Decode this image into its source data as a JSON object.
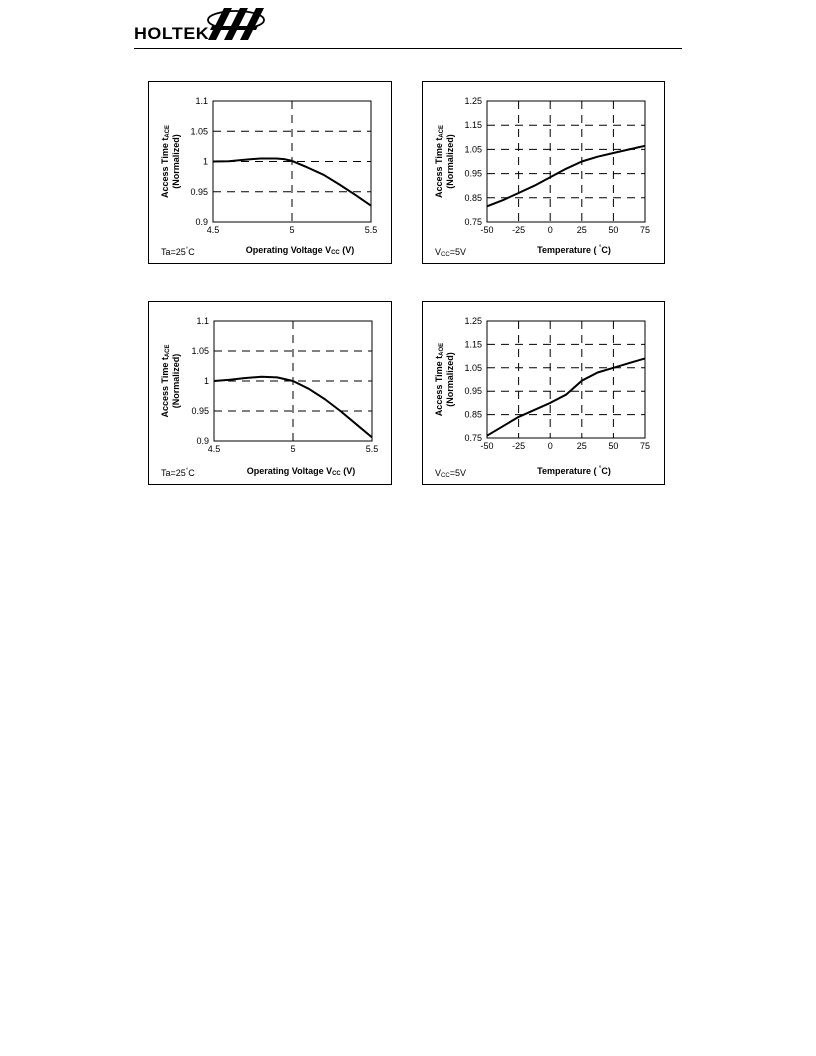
{
  "header": {
    "logo_text": "HOLTEK",
    "logo_mark_icon": "holtek-logo-mark-icon"
  },
  "chart_data": [
    {
      "type": "line",
      "xlabel": "Operating Voltage V",
      "xlabel_sub": "CC",
      "xlabel_tail": " (V)",
      "ylabel_line1": "Access Time t",
      "ylabel_sub": "ACE",
      "ylabel_line2": "(Normalized)",
      "condition": "Ta=25",
      "condition_unit": "C",
      "xlim": [
        4.5,
        5.5
      ],
      "ylim": [
        0.9,
        1.1
      ],
      "x_ticks": [
        "4.5",
        "5",
        "5.5"
      ],
      "y_ticks": [
        "0.9",
        "0.95",
        "1",
        "1.05",
        "1.1"
      ],
      "x_tick_values": [
        4.5,
        5,
        5.5
      ],
      "y_tick_values": [
        0.9,
        0.95,
        1,
        1.05,
        1.1
      ],
      "grid_dashed_y": [
        0.95,
        1,
        1.05
      ],
      "grid_dashed_x": [
        5
      ],
      "x": [
        4.5,
        4.6,
        4.7,
        4.8,
        4.9,
        4.95,
        5.0,
        5.1,
        5.2,
        5.3,
        5.4,
        5.5
      ],
      "y": [
        1.0,
        1.0005,
        1.003,
        1.005,
        1.005,
        1.004,
        1.001,
        0.99,
        0.978,
        0.962,
        0.945,
        0.927
      ]
    },
    {
      "type": "line",
      "xlabel": "Temperature ( ",
      "xlabel_sub": "",
      "xlabel_tail": "C)",
      "ylabel_line1": "Access Time t",
      "ylabel_sub": "ACE",
      "ylabel_line2": "(Normalized)",
      "condition": "V",
      "condition_sub": "CC",
      "condition_tail": "=5V",
      "xlim": [
        -50,
        75
      ],
      "ylim": [
        0.75,
        1.25
      ],
      "x_ticks": [
        "-50",
        "-25",
        "0",
        "25",
        "50",
        "75"
      ],
      "y_ticks": [
        "0.75",
        "0.85",
        "0.95",
        "1.05",
        "1.15",
        "1.25"
      ],
      "x_tick_values": [
        -50,
        -25,
        0,
        25,
        50,
        75
      ],
      "y_tick_values": [
        0.75,
        0.85,
        0.95,
        1.05,
        1.15,
        1.25
      ],
      "grid_dashed_y": [
        0.85,
        0.95,
        1.05,
        1.15
      ],
      "grid_dashed_x": [
        -25,
        0,
        25,
        50
      ],
      "x": [
        -50,
        -37.5,
        -25,
        -12.5,
        0,
        12.5,
        25,
        37.5,
        50,
        62.5,
        75
      ],
      "y": [
        0.815,
        0.84,
        0.87,
        0.9,
        0.935,
        0.97,
        1.0,
        1.02,
        1.035,
        1.05,
        1.065
      ]
    },
    {
      "type": "line",
      "xlabel": "Operating Voltage V",
      "xlabel_sub": "CC",
      "xlabel_tail": " (V)",
      "ylabel_line1": "Access Time t",
      "ylabel_sub": "ACE",
      "ylabel_line2": "(Normalized)",
      "condition": "Ta=25",
      "condition_unit": "C",
      "xlim": [
        4.5,
        5.5
      ],
      "ylim": [
        0.9,
        1.1
      ],
      "x_ticks": [
        "4.5",
        "5",
        "5.5"
      ],
      "y_ticks": [
        "0.9",
        "0.95",
        "1",
        "1.05",
        "1.1"
      ],
      "x_tick_values": [
        4.5,
        5,
        5.5
      ],
      "y_tick_values": [
        0.9,
        0.95,
        1,
        1.05,
        1.1
      ],
      "grid_dashed_y": [
        0.95,
        1,
        1.05
      ],
      "grid_dashed_x": [
        5
      ],
      "x": [
        4.5,
        4.6,
        4.7,
        4.8,
        4.9,
        5.0,
        5.1,
        5.2,
        5.3,
        5.4,
        5.5
      ],
      "y": [
        1.0,
        1.002,
        1.005,
        1.007,
        1.006,
        1.0,
        0.987,
        0.97,
        0.95,
        0.928,
        0.906
      ]
    },
    {
      "type": "line",
      "xlabel": "Temperature ( ",
      "xlabel_sub": "",
      "xlabel_tail": "C)",
      "ylabel_line1": "Access Time t",
      "ylabel_sub": "AOE",
      "ylabel_line2": "(Normalized)",
      "condition": "V",
      "condition_sub": "CC",
      "condition_tail": "=5V",
      "xlim": [
        -50,
        75
      ],
      "ylim": [
        0.75,
        1.25
      ],
      "x_ticks": [
        "-50",
        "-25",
        "0",
        "25",
        "50",
        "75"
      ],
      "y_ticks": [
        "0.75",
        "0.85",
        "0.95",
        "1.05",
        "1.15",
        "1.25"
      ],
      "x_tick_values": [
        -50,
        -25,
        0,
        25,
        50,
        75
      ],
      "y_tick_values": [
        0.75,
        0.85,
        0.95,
        1.05,
        1.15,
        1.25
      ],
      "grid_dashed_y": [
        0.85,
        0.95,
        1.05,
        1.15
      ],
      "grid_dashed_x": [
        -25,
        0,
        25,
        50
      ],
      "x": [
        -50,
        -37.5,
        -25,
        -12.5,
        0,
        12.5,
        25,
        37.5,
        50,
        62.5,
        75
      ],
      "y": [
        0.76,
        0.8,
        0.84,
        0.87,
        0.9,
        0.935,
        0.995,
        1.03,
        1.05,
        1.07,
        1.09
      ]
    }
  ]
}
